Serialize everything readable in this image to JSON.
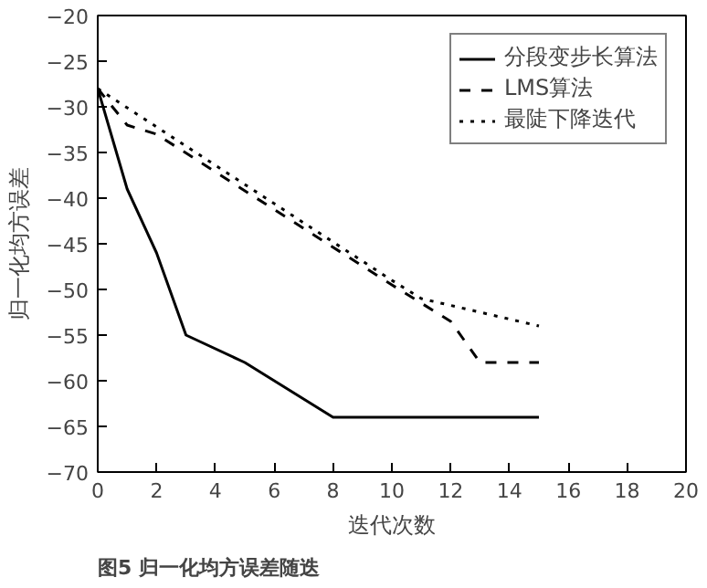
{
  "chart_data": {
    "type": "line",
    "xlabel": "迭代次数",
    "ylabel": "归一化均方误差",
    "annotations": [
      "图5 归一化均方误差随迭"
    ],
    "xlim": [
      0,
      20
    ],
    "ylim": [
      -70,
      -20
    ],
    "xticks": [
      0,
      2,
      4,
      6,
      8,
      10,
      12,
      14,
      16,
      18,
      20
    ],
    "yticks": [
      -70,
      -65,
      -60,
      -55,
      -50,
      -45,
      -40,
      -35,
      -30,
      -25,
      -20
    ],
    "grid": false,
    "legend": "top right",
    "marker": "none",
    "series": [
      {
        "name": "分段变步长算法",
        "color": "#000000",
        "line_style": "solid",
        "x": [
          0,
          1,
          2,
          3,
          5,
          8,
          15
        ],
        "values": [
          -28,
          -39,
          -46,
          -55,
          -58,
          -64,
          -64
        ]
      },
      {
        "name": "LMS算法",
        "color": "#000000",
        "line_style": "dashed",
        "x": [
          0,
          1,
          2,
          10,
          12,
          13,
          15
        ],
        "values": [
          -28,
          -32,
          -33,
          -49.5,
          -53.5,
          -58,
          -58
        ]
      },
      {
        "name": "最陡下降迭代",
        "color": "#000000",
        "line_style": "dotted",
        "x": [
          0,
          10,
          11,
          15
        ],
        "values": [
          -28,
          -49,
          -51,
          -54
        ]
      }
    ]
  }
}
